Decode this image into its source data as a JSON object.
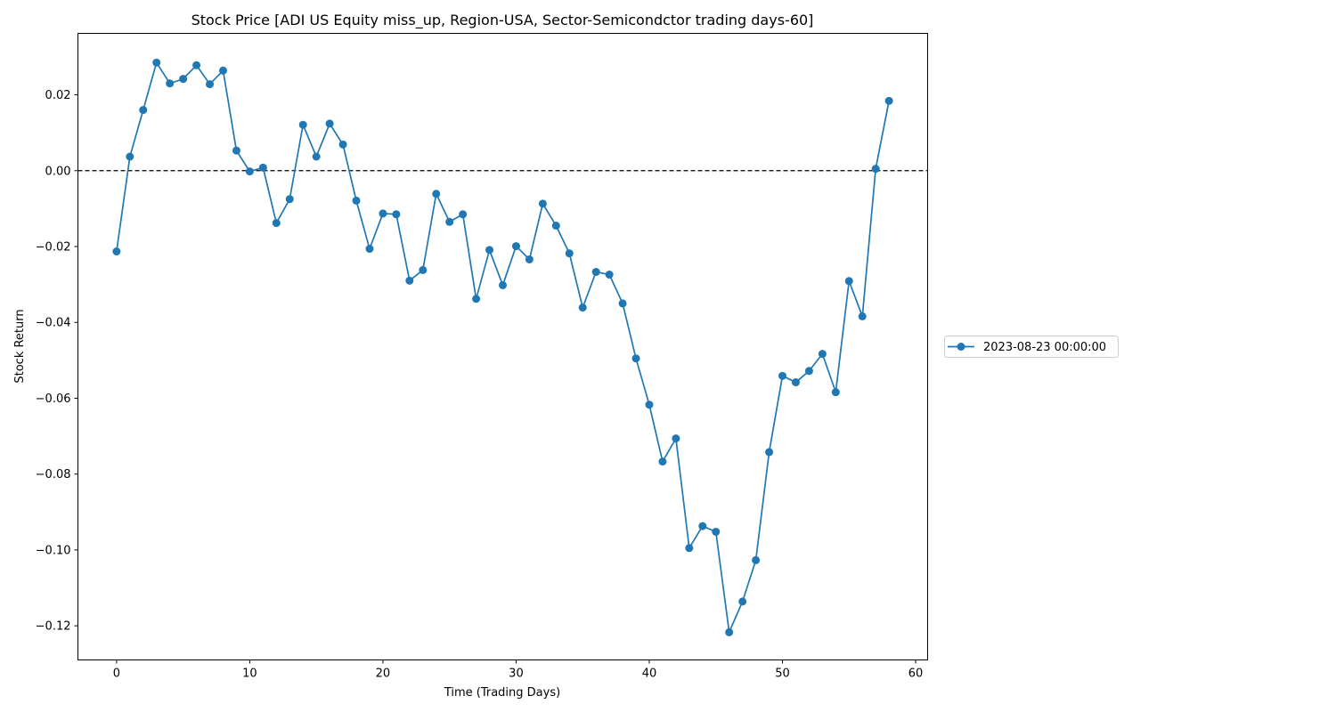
{
  "chart_data": {
    "type": "line",
    "title": "Stock Price [ADI US Equity miss_up, Region-USA, Sector-Semicondctor trading days-60]",
    "xlabel": "Time (Trading Days)",
    "ylabel": "Stock Return",
    "xlim": [
      -2.9,
      60.9
    ],
    "ylim": [
      -0.129,
      0.0362
    ],
    "xticks": [
      0,
      10,
      20,
      30,
      40,
      50,
      60
    ],
    "xtick_labels": [
      "0",
      "10",
      "20",
      "30",
      "40",
      "50",
      "60"
    ],
    "yticks": [
      0.02,
      0.0,
      -0.02,
      -0.04,
      -0.06,
      -0.08,
      -0.1,
      -0.12
    ],
    "ytick_labels": [
      "0.02",
      "0.00",
      "−0.02",
      "−0.04",
      "−0.06",
      "−0.08",
      "−0.10",
      "−0.12"
    ],
    "reference_line": {
      "y": 0.0,
      "style": "dashed",
      "color": "#000000"
    },
    "legend_position": "outside-right-center",
    "grid": false,
    "series": [
      {
        "name": "2023-08-23 00:00:00",
        "color": "#1f77b4",
        "marker": "circle",
        "x": [
          0,
          1,
          2,
          3,
          4,
          5,
          6,
          7,
          8,
          9,
          10,
          11,
          12,
          13,
          14,
          15,
          16,
          17,
          18,
          19,
          20,
          21,
          22,
          23,
          24,
          25,
          26,
          27,
          28,
          29,
          30,
          31,
          32,
          33,
          34,
          35,
          36,
          37,
          38,
          39,
          40,
          41,
          42,
          43,
          44,
          45,
          46,
          47,
          48,
          49,
          50,
          51,
          52,
          53,
          54,
          55,
          56,
          57,
          58
        ],
        "values": [
          -0.0213,
          0.0037,
          0.016,
          0.0285,
          0.023,
          0.0242,
          0.0278,
          0.0228,
          0.0264,
          0.0053,
          -0.0002,
          0.0008,
          -0.0138,
          -0.0075,
          0.0121,
          0.0037,
          0.0124,
          0.0069,
          -0.0079,
          -0.0206,
          -0.0113,
          -0.0115,
          -0.029,
          -0.0262,
          -0.0061,
          -0.0135,
          -0.0115,
          -0.0338,
          -0.0209,
          -0.0302,
          -0.0199,
          -0.0234,
          -0.0087,
          -0.0145,
          -0.0218,
          -0.0361,
          -0.0267,
          -0.0274,
          -0.035,
          -0.0495,
          -0.0617,
          -0.0767,
          -0.0706,
          -0.0995,
          -0.0937,
          -0.0952,
          -0.1217,
          -0.1136,
          -0.1027,
          -0.0742,
          -0.0541,
          -0.0558,
          -0.0528,
          -0.0483,
          -0.0584,
          -0.0291,
          -0.0384,
          0.0005,
          0.0184
        ]
      }
    ]
  }
}
